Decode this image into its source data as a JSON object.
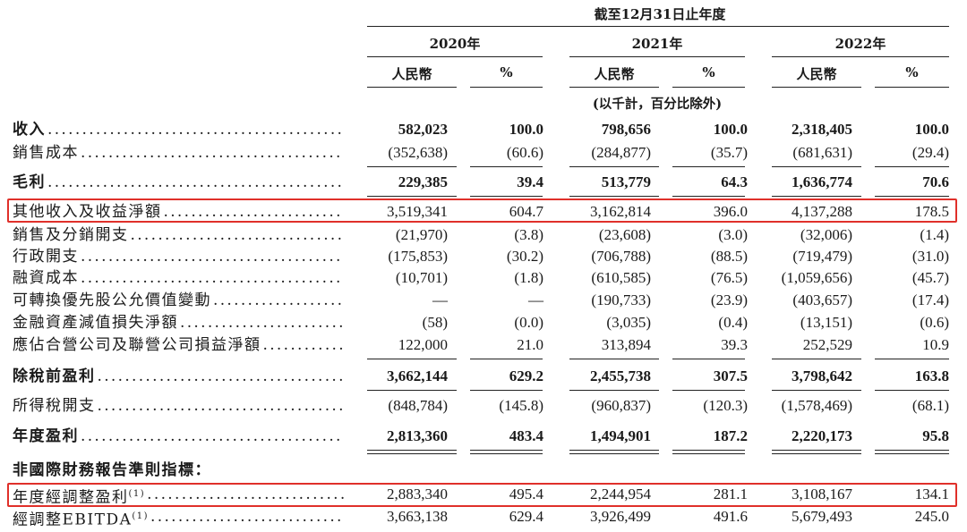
{
  "header": {
    "period_caption": "截至12月31日止年度",
    "years": [
      "2020年",
      "2021年",
      "2022年"
    ],
    "currency_label": "人民幣",
    "pct_label": "%",
    "unit_note": "(以千計，百分比除外)"
  },
  "rows": [
    {
      "label": "收入",
      "values": [
        "582,023",
        "100.0",
        "798,656",
        "100.0",
        "2,318,405",
        "100.0"
      ],
      "bold": true
    },
    {
      "label": "銷售成本",
      "values": [
        "(352,638)",
        "(60.6)",
        "(284,877)",
        "(35.7)",
        "(681,631)",
        "(29.4)"
      ]
    },
    {
      "label": "毛利",
      "values": [
        "229,385",
        "39.4",
        "513,779",
        "64.3",
        "1,636,774",
        "70.6"
      ],
      "bold": true
    },
    {
      "label": "其他收入及收益淨額",
      "values": [
        "3,519,341",
        "604.7",
        "3,162,814",
        "396.0",
        "4,137,288",
        "178.5"
      ],
      "highlighted": true
    },
    {
      "label": "銷售及分銷開支",
      "values": [
        "(21,970)",
        "(3.8)",
        "(23,608)",
        "(3.0)",
        "(32,006)",
        "(1.4)"
      ]
    },
    {
      "label": "行政開支",
      "values": [
        "(175,853)",
        "(30.2)",
        "(706,788)",
        "(88.5)",
        "(719,479)",
        "(31.0)"
      ]
    },
    {
      "label": "融資成本",
      "values": [
        "(10,701)",
        "(1.8)",
        "(610,585)",
        "(76.5)",
        "(1,059,656)",
        "(45.7)"
      ]
    },
    {
      "label": "可轉換優先股公允價值變動",
      "values": [
        "—",
        "—",
        "(190,733)",
        "(23.9)",
        "(403,657)",
        "(17.4)"
      ]
    },
    {
      "label": "金融資產減值損失淨額",
      "values": [
        "(58)",
        "(0.0)",
        "(3,035)",
        "(0.4)",
        "(13,151)",
        "(0.6)"
      ]
    },
    {
      "label": "應佔合營公司及聯營公司損益淨額",
      "values": [
        "122,000",
        "21.0",
        "313,894",
        "39.3",
        "252,529",
        "10.9"
      ]
    },
    {
      "label": "除稅前盈利",
      "values": [
        "3,662,144",
        "629.2",
        "2,455,738",
        "307.5",
        "3,798,642",
        "163.8"
      ],
      "bold": true
    },
    {
      "label": "所得稅開支",
      "values": [
        "(848,784)",
        "(145.8)",
        "(960,837)",
        "(120.3)",
        "(1,578,469)",
        "(68.1)"
      ]
    },
    {
      "label": "年度盈利",
      "values": [
        "2,813,360",
        "483.4",
        "1,494,901",
        "187.2",
        "2,220,173",
        "95.8"
      ],
      "bold": true
    }
  ],
  "non_ifrs": {
    "heading": "非國際財務報告準則指標：",
    "rows": [
      {
        "label": "年度經調整盈利",
        "footnote": "(1)",
        "values": [
          "2,883,340",
          "495.4",
          "2,244,954",
          "281.1",
          "3,108,167",
          "134.1"
        ],
        "highlighted": true
      },
      {
        "label": "經調整EBITDA",
        "footnote": "(1)",
        "values": [
          "3,663,138",
          "629.4",
          "3,926,499",
          "491.6",
          "5,679,493",
          "245.0"
        ]
      }
    ]
  },
  "colors": {
    "highlight_border": "#e0302a",
    "text": "#1a1a1a"
  }
}
